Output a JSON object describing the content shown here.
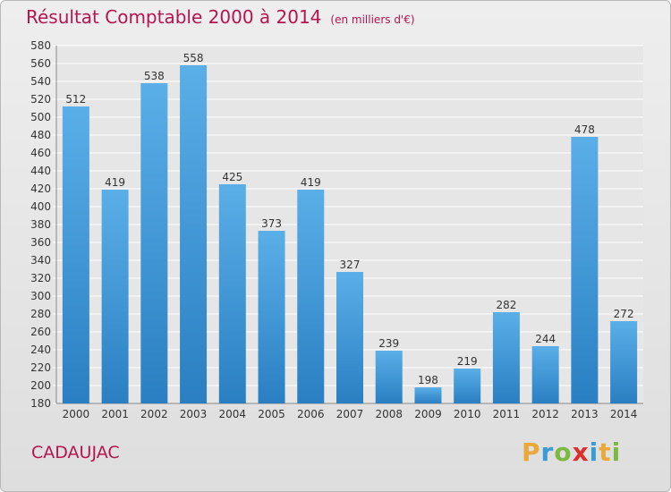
{
  "title": "Résultat Comptable 2000 à 2014",
  "unit_note": "(en milliers d'€)",
  "commune": "CADAUJAC",
  "logo": {
    "letters": [
      "P",
      "r",
      "o",
      "x",
      "i",
      "t",
      "i"
    ],
    "colors": [
      "#e8a93a",
      "#3a9bd9",
      "#7cb940",
      "#d9302b",
      "#3a9bd9",
      "#e8a93a",
      "#7cb940"
    ]
  },
  "colors": {
    "title": "#b5154f",
    "bar_top": "#5aafe8",
    "bar_bottom": "#2a7fc2"
  },
  "chart_data": {
    "type": "bar",
    "categories": [
      "2000",
      "2001",
      "2002",
      "2003",
      "2004",
      "2005",
      "2006",
      "2007",
      "2008",
      "2009",
      "2010",
      "2011",
      "2012",
      "2013",
      "2014"
    ],
    "values": [
      512,
      419,
      538,
      558,
      425,
      373,
      419,
      327,
      239,
      198,
      219,
      282,
      244,
      478,
      272
    ],
    "ylim": [
      180,
      580
    ],
    "ytick_step": 20,
    "grid": true
  }
}
